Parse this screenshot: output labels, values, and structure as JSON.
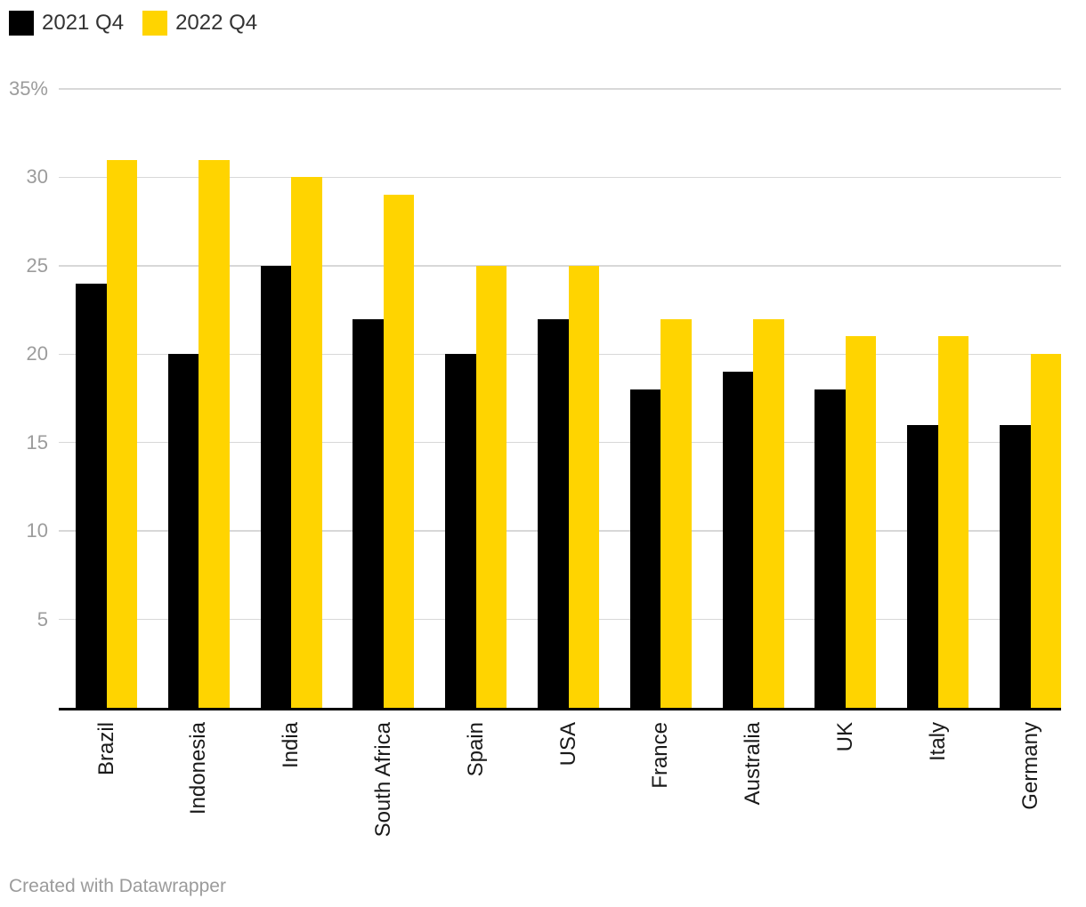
{
  "legend": {
    "items": [
      {
        "label": "2021 Q4",
        "color": "#000000"
      },
      {
        "label": "2022 Q4",
        "color": "#FFD400"
      }
    ]
  },
  "chart_data": {
    "type": "bar",
    "title": "",
    "categories": [
      "Brazil",
      "Indonesia",
      "India",
      "South Africa",
      "Spain",
      "USA",
      "France",
      "Australia",
      "UK",
      "Italy",
      "Germany"
    ],
    "series": [
      {
        "name": "2021 Q4",
        "color": "#000000",
        "values": [
          24,
          20,
          25,
          22,
          20,
          22,
          18,
          19,
          18,
          16,
          16
        ]
      },
      {
        "name": "2022 Q4",
        "color": "#FFD400",
        "values": [
          31,
          31,
          30,
          29,
          25,
          25,
          22,
          22,
          21,
          21,
          20
        ]
      }
    ],
    "xlabel": "",
    "ylabel": "",
    "unit": "%",
    "ylim": [
      0,
      35
    ],
    "yticks": [
      5,
      10,
      15,
      20,
      25,
      30,
      35
    ],
    "ytick_labels": [
      "5",
      "10",
      "15",
      "20",
      "25",
      "30",
      "35%"
    ],
    "grid": true,
    "legend_position": "top-left",
    "bar_orientation": "vertical",
    "category_label_rotation": -90
  },
  "footer": {
    "text": "Created with Datawrapper"
  },
  "colors": {
    "background": "#ffffff",
    "grid": "#d8d8d8",
    "axis": "#000000",
    "tick_label": "#9c9c9c",
    "category_label": "#1a1a1a",
    "legend_label": "#333333",
    "footer_text": "#9b9b9b"
  }
}
